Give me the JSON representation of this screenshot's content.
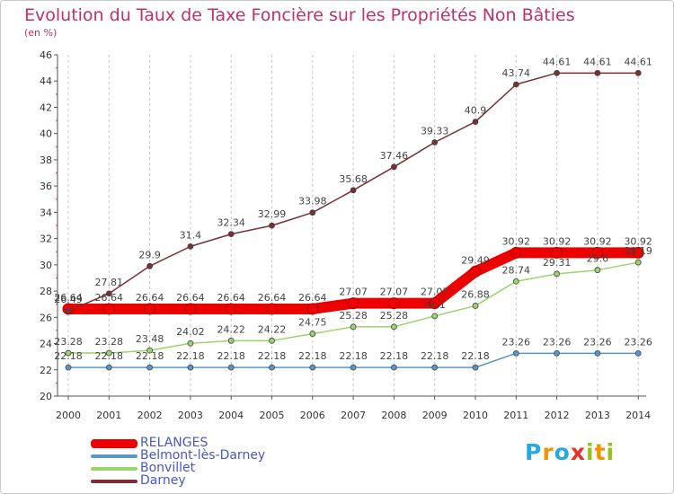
{
  "header": {
    "title": "Evolution du Taux de Taxe Foncière sur les Propriétés Non Bâties",
    "subtitle": "(en %)"
  },
  "branding": {
    "logo_text": "Proxiti"
  },
  "colors": {
    "title": "#c0306a",
    "axis": "#555555",
    "grid": "#c8c8c8",
    "legend_text": "#4a55c8"
  },
  "chart_data": {
    "type": "line",
    "title": "Evolution du Taux de Taxe Foncière sur les Propriétés Non Bâties",
    "subtitle": "(en %)",
    "xlabel": "",
    "ylabel": "",
    "x": [
      "2000",
      "2001",
      "2002",
      "2003",
      "2004",
      "2005",
      "2006",
      "2007",
      "2008",
      "2009",
      "2010",
      "2011",
      "2012",
      "2013",
      "2014"
    ],
    "ylim": [
      20,
      46
    ],
    "yticks": [
      20,
      22,
      24,
      26,
      28,
      30,
      32,
      34,
      36,
      38,
      40,
      42,
      44,
      46
    ],
    "grid": "vertical-dashed",
    "legend_position": "bottom-left",
    "series": [
      {
        "name": "RELANGES",
        "color": "#ee0000",
        "values": [
          26.64,
          26.64,
          26.64,
          26.64,
          26.64,
          26.64,
          26.64,
          27.07,
          27.07,
          27.07,
          29.49,
          30.92,
          30.92,
          30.92,
          30.92
        ],
        "labels": [
          "26.64",
          "26.64",
          "26.64",
          "26.64",
          "26.64",
          "26.64",
          "26.64",
          "27.07",
          "27.07",
          "27.07",
          "29.49",
          "30.92",
          "30.92",
          "30.92",
          "30.92"
        ]
      },
      {
        "name": "Belmont-lès-Darney",
        "color": "#5a96c8",
        "values": [
          22.18,
          22.18,
          22.18,
          22.18,
          22.18,
          22.18,
          22.18,
          22.18,
          22.18,
          22.18,
          22.18,
          23.26,
          23.26,
          23.26,
          23.26
        ],
        "labels": [
          "22.18",
          "22.18",
          "22.18",
          "22.18",
          "22.18",
          "22.18",
          "22.18",
          "22.18",
          "22.18",
          "22.18",
          "22.18",
          "23.26",
          "23.26",
          "23.26",
          "23.26"
        ]
      },
      {
        "name": "Bonvillet",
        "color": "#9ad46c",
        "values": [
          23.28,
          23.28,
          23.48,
          24.02,
          24.22,
          24.22,
          24.75,
          25.28,
          25.28,
          26.1,
          26.88,
          28.74,
          29.31,
          29.6,
          30.19
        ],
        "labels": [
          "23.28",
          "23.28",
          "23.48",
          "24.02",
          "24.22",
          "24.22",
          "24.75",
          "25.28",
          "25.28",
          "26.1",
          "26.88",
          "28.74",
          "29.31",
          "29.6",
          "30.19"
        ]
      },
      {
        "name": "Darney",
        "color": "#7a2f33",
        "values": [
          26.49,
          27.81,
          29.9,
          31.4,
          32.34,
          32.99,
          33.98,
          35.68,
          37.46,
          39.33,
          40.9,
          43.74,
          44.61,
          44.61,
          44.61
        ],
        "labels": [
          "26.49",
          "27.81",
          "29.9",
          "31.4",
          "32.34",
          "32.99",
          "33.98",
          "35.68",
          "37.46",
          "39.33",
          "40.9",
          "43.74",
          "44.61",
          "44.61",
          "44.61"
        ]
      }
    ]
  }
}
